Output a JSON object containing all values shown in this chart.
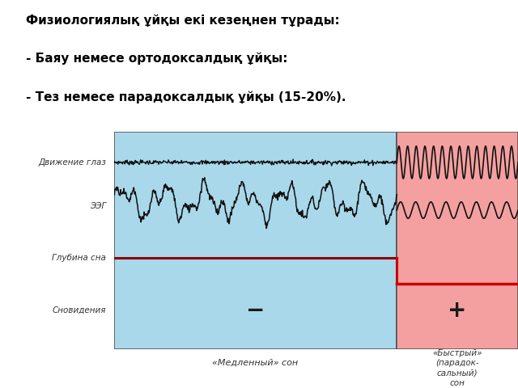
{
  "title_lines": [
    "Физиологиялық ұйқы екі кезеңнен тұрады:",
    "- Баяу немесе ортодоксалдық ұйқы:",
    "- Тез немесе парадоксалдық ұйқы (15-20%)."
  ],
  "slow_color": "#a8d8ea",
  "fast_color": "#f4a0a0",
  "wave_color": "#111111",
  "dark_red": "#8b0000",
  "bright_red": "#cc0000",
  "label_dvij": "Движение глаз",
  "label_eeg": "ЭЭГ",
  "label_glub": "Глубина сна",
  "label_snov": "Сновидения",
  "label_slow": "«Медленный» сон",
  "label_fast": "«Быстрый»\n(парадок-\nсальный)\nсон",
  "minus_sign": "−",
  "plus_sign": "+"
}
